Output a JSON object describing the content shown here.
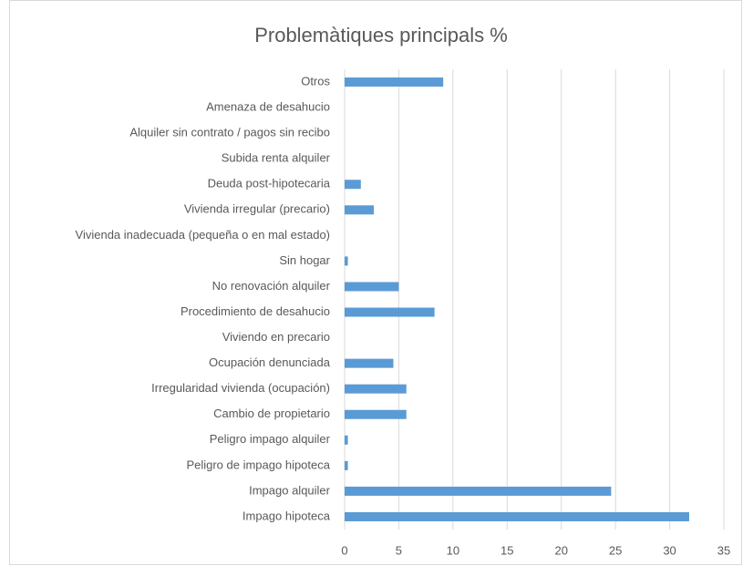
{
  "chart_data": {
    "type": "bar",
    "orientation": "horizontal",
    "title": "Problemàtiques principals %",
    "categories": [
      "Impago hipoteca",
      "Impago alquiler",
      "Peligro de impago hipoteca",
      "Peligro impago alquiler",
      "Cambio de propietario",
      "Irregularidad vivienda (ocupación)",
      "Ocupación denunciada",
      "Viviendo en precario",
      "Procedimiento de desahucio",
      "No renovación alquiler",
      "Sin hogar",
      "Vivienda inadecuada (pequeña o en mal estado)",
      "Vivienda irregular (precario)",
      "Deuda post-hipotecaria",
      "Subida renta alquiler",
      "Alquiler sin contrato / pagos sin recibo",
      "Amenaza de desahucio",
      "Otros"
    ],
    "values": [
      31.8,
      24.6,
      0.3,
      0.3,
      5.7,
      5.7,
      4.5,
      0,
      8.3,
      5.0,
      0.3,
      0,
      2.7,
      1.5,
      0,
      0,
      0,
      9.1
    ],
    "color": "#5b9bd5",
    "xlim": [
      0,
      35
    ],
    "xticks": [
      0,
      5,
      10,
      15,
      20,
      25,
      30,
      35
    ],
    "grid": true
  }
}
